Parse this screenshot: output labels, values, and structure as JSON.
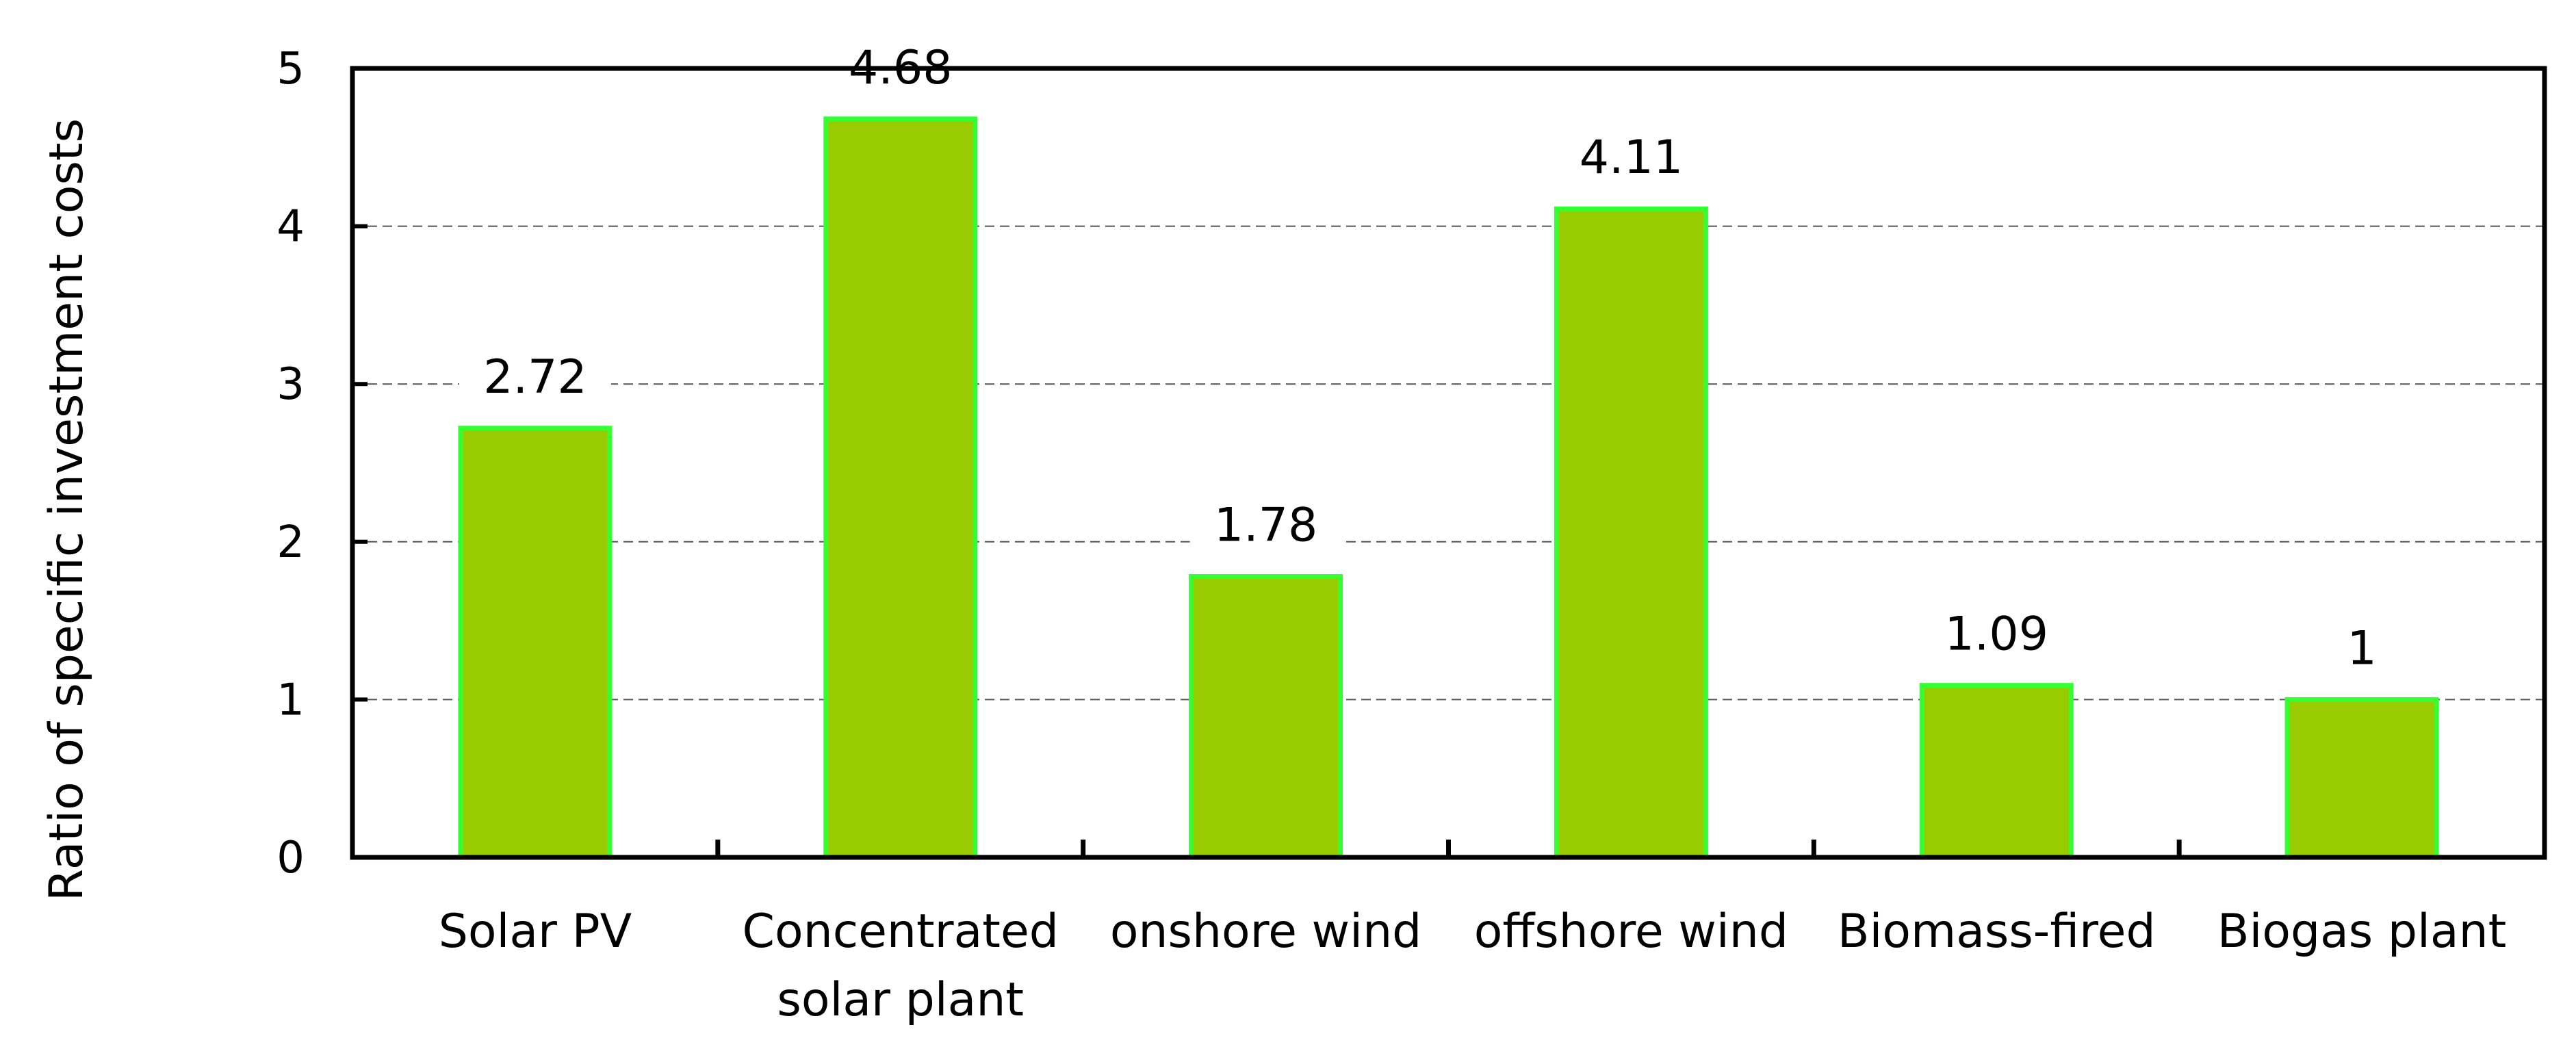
{
  "chart_data": {
    "type": "bar",
    "categories": [
      [
        "Solar PV"
      ],
      [
        "Concentrated",
        "solar plant"
      ],
      [
        "onshore wind"
      ],
      [
        "offshore wind"
      ],
      [
        "Biomass-fired"
      ],
      [
        "Biogas plant"
      ]
    ],
    "values": [
      2.72,
      4.68,
      1.78,
      4.11,
      1.09,
      1
    ],
    "data_labels": [
      "2.72",
      "4.68",
      "1.78",
      "4.11",
      "1.09",
      "1"
    ],
    "title": "",
    "xlabel": "",
    "ylabel": "Ratio of specific investment costs",
    "ylim": [
      0,
      5
    ],
    "yticks": [
      0,
      1,
      2,
      3,
      4,
      5
    ],
    "grid": "horizontal dashed",
    "legend": "none",
    "colors": {
      "bar_fill": "#99CC00",
      "bar_edge": "#33FF33",
      "axis": "#000000",
      "grid": "#555555"
    }
  }
}
